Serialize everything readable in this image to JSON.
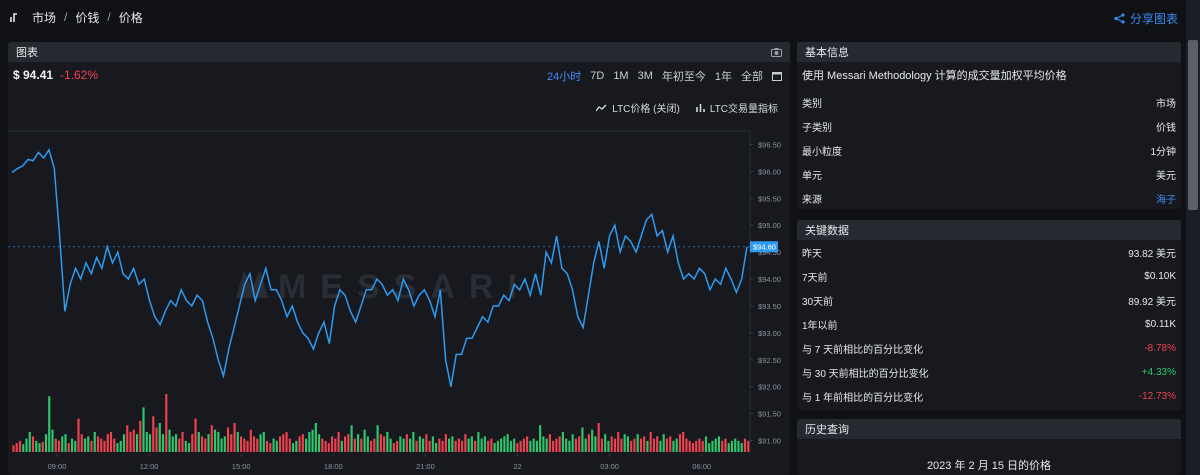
{
  "breadcrumb": {
    "items": [
      "市场",
      "价钱",
      "价格"
    ]
  },
  "share": {
    "label": "分享图表"
  },
  "chart_panel": {
    "title": "图表",
    "price": "$ 94.41",
    "change": "-1.62%",
    "ranges": [
      "24小时",
      "7D",
      "1M",
      "3M",
      "年初至今",
      "1年",
      "全部"
    ],
    "active_range": "24小时",
    "legend": {
      "price": "LTC价格 (关闭)",
      "volume": "LTC交易量指标"
    },
    "watermark": "MESSARI",
    "current_label": "$94.60"
  },
  "chart_data": {
    "type": "line",
    "y_ticks": [
      "$96.50",
      "$96.00",
      "$95.50",
      "$95.00",
      "$94.50",
      "$94.00",
      "$93.50",
      "$93.00",
      "$92.50",
      "$92.00",
      "$91.50",
      "$91.00"
    ],
    "x_ticks": [
      "09:00",
      "12:00",
      "15:00",
      "18:00",
      "21:00",
      "22",
      "03:00",
      "06:00"
    ],
    "ylim": [
      90.75,
      96.75
    ],
    "line_color": "#2e9bf0",
    "series": [
      {
        "values": [
          95.98,
          96.05,
          96.1,
          96.22,
          96.2,
          96.35,
          96.25,
          96.4,
          96.05,
          94.8,
          93.4,
          93.9,
          94.2,
          94.0,
          94.3,
          94.1,
          94.4,
          94.2,
          94.6,
          94.3,
          94.5,
          94.1,
          94.0,
          94.2,
          93.9,
          94.0,
          93.6,
          93.3,
          93.15,
          93.4,
          93.6,
          93.5,
          93.8,
          93.6,
          93.5,
          93.7,
          93.6,
          93.2,
          92.9,
          92.5,
          92.2,
          92.7,
          93.1,
          93.5,
          93.9,
          94.1,
          93.6,
          93.9,
          94.2,
          93.8,
          93.8,
          93.6,
          93.3,
          93.5,
          93.2,
          93.0,
          92.9,
          92.7,
          93.0,
          93.2,
          92.8,
          93.5,
          93.8,
          93.7,
          93.4,
          93.2,
          93.5,
          93.8,
          93.8,
          94.0,
          93.9,
          93.7,
          93.8,
          93.6,
          94.0,
          93.8,
          93.5,
          93.7,
          93.8,
          93.6,
          93.3,
          93.8,
          92.5,
          92.0,
          92.6,
          92.6,
          92.9,
          92.9,
          93.1,
          93.3,
          93.2,
          93.5,
          93.5,
          93.7,
          93.6,
          93.9,
          93.8,
          94.0,
          93.7,
          94.1,
          93.7,
          94.5,
          94.3,
          94.8,
          94.2,
          94.1,
          93.8,
          93.3,
          93.1,
          93.7,
          94.3,
          94.7,
          94.2,
          94.8,
          95.0,
          94.5,
          94.8,
          94.7,
          94.5,
          94.8,
          95.1,
          95.2,
          94.8,
          94.9,
          94.5,
          94.8,
          94.3,
          94.0,
          94.1,
          94.0,
          94.2,
          94.1,
          93.8,
          94.0,
          93.9,
          94.2,
          94.0,
          93.75,
          94.0,
          94.6
        ]
      }
    ],
    "volume": {
      "values": [
        0.3,
        0.4,
        0.5,
        0.35,
        0.6,
        0.9,
        0.7,
        0.5,
        0.4,
        0.45,
        0.8,
        2.5,
        1.0,
        0.6,
        0.5,
        0.7,
        0.8,
        0.4,
        0.6,
        0.5,
        1.5,
        0.8,
        0.6,
        0.7,
        0.5,
        0.9,
        0.7,
        0.6,
        0.5,
        0.8,
        0.9,
        0.6,
        0.4,
        0.5,
        0.8,
        1.2,
        0.9,
        1.0,
        0.8,
        1.4,
        2.0,
        0.9,
        0.8,
        1.6,
        1.1,
        1.3,
        0.8,
        2.6,
        1.0,
        0.7,
        0.8,
        0.6,
        0.9,
        0.5,
        0.4,
        0.8,
        1.5,
        0.9,
        0.7,
        0.6,
        0.8,
        1.2,
        1.0,
        0.9,
        0.6,
        0.7,
        1.1,
        0.8,
        1.3,
        0.9,
        0.7,
        0.6,
        0.5,
        1.0,
        0.7,
        0.6,
        0.8,
        0.9,
        0.5,
        0.4,
        0.6,
        0.5,
        0.7,
        0.8,
        0.9,
        0.6,
        0.4,
        0.5,
        0.7,
        0.8,
        0.6,
        0.9,
        1.0,
        1.3,
        0.8,
        0.6,
        0.5,
        0.4,
        0.7,
        0.6,
        0.9,
        0.5,
        0.7,
        0.8,
        1.2,
        0.6,
        0.8,
        0.6,
        1.0,
        0.7,
        0.5,
        0.6,
        1.2,
        0.8,
        0.7,
        0.9,
        0.6,
        0.4,
        0.5,
        0.7,
        0.6,
        0.8,
        0.6,
        0.9,
        0.5,
        0.7,
        0.6,
        0.8,
        0.5,
        0.7,
        0.4,
        0.6,
        0.5,
        0.8,
        0.6,
        0.7,
        0.5,
        0.6,
        0.5,
        0.8,
        0.6,
        0.7,
        0.5,
        0.9,
        0.6,
        0.7,
        0.5,
        0.6,
        0.4,
        0.5,
        0.6,
        0.7,
        0.8,
        0.5,
        0.6,
        0.4,
        0.5,
        0.6,
        0.7,
        0.5,
        0.6,
        0.5,
        1.2,
        0.7,
        0.6,
        0.8,
        0.5,
        0.6,
        0.7,
        0.9,
        0.6,
        0.5,
        0.8,
        0.6,
        0.7,
        1.1,
        0.6,
        0.8,
        1.0,
        0.7,
        1.3,
        0.6,
        0.8,
        0.5,
        0.7,
        0.6,
        0.9,
        0.6,
        0.8,
        0.7,
        0.5,
        0.6,
        0.8,
        0.6,
        0.7,
        0.5,
        0.9,
        0.6,
        0.7,
        0.5,
        0.8,
        0.6,
        0.7,
        0.5,
        0.6,
        0.8,
        0.9,
        0.6,
        0.5,
        0.4,
        0.5,
        0.6,
        0.5,
        0.7,
        0.4,
        0.5,
        0.6,
        0.7,
        0.5,
        0.6,
        0.4,
        0.5,
        0.6,
        0.5,
        0.4,
        0.6,
        0.5
      ],
      "colors": [
        "#2ec76b",
        "#f0414e"
      ]
    }
  },
  "basic_info": {
    "title": "基本信息",
    "description": "使用 Messari Methodology 计算的成交量加权平均价格",
    "rows": [
      {
        "k": "类别",
        "v": "市场"
      },
      {
        "k": "子类别",
        "v": "价钱"
      },
      {
        "k": "最小粒度",
        "v": "1分钟"
      },
      {
        "k": "单元",
        "v": "美元"
      },
      {
        "k": "来源",
        "v": "海子"
      }
    ]
  },
  "key_data": {
    "title": "关键数据",
    "rows": [
      {
        "k": "昨天",
        "v": "93.82 美元"
      },
      {
        "k": "7天前",
        "v": "$0.10K"
      },
      {
        "k": "30天前",
        "v": "89.92 美元"
      },
      {
        "k": "1年以前",
        "v": "$0.11K"
      },
      {
        "k": "与 7 天前相比的百分比变化",
        "v": "-8.78%"
      },
      {
        "k": "与 30 天前相比的百分比变化",
        "v": "+4.33%"
      },
      {
        "k": "与 1 年前相比的百分比变化",
        "v": "-12.73%"
      }
    ]
  },
  "history": {
    "title": "历史查询",
    "date_text": "2023 年 2 月 15 日的价格"
  }
}
